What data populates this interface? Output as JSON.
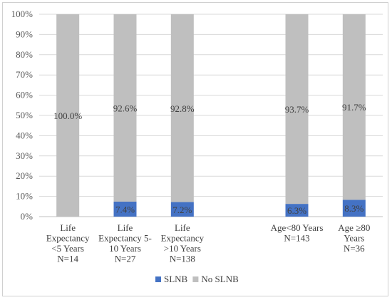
{
  "chart_data": {
    "type": "bar",
    "stacked": true,
    "percent_stacked": true,
    "categories": [
      {
        "lines": [
          "Life",
          "Expectancy",
          "<5 Years",
          "N=14"
        ]
      },
      {
        "lines": [
          "Life",
          "Expectancy 5-",
          "10 Years",
          "N=27"
        ]
      },
      {
        "lines": [
          "Life",
          "Expectancy",
          ">10 Years",
          "N=138"
        ]
      },
      {
        "lines": [],
        "gap": true
      },
      {
        "lines": [
          "Age<80 Years",
          "N=143"
        ]
      },
      {
        "lines": [
          "Age ≥80",
          "Years",
          "N=36"
        ]
      }
    ],
    "series": [
      {
        "name": "SLNB",
        "color": "#4472C4",
        "values": [
          0,
          7.4,
          7.2,
          null,
          6.3,
          8.3
        ],
        "labels": [
          "",
          "7.4%",
          "7.2%",
          "",
          "6.3%",
          "8.3%"
        ]
      },
      {
        "name": "No SLNB",
        "color": "#BFBFBF",
        "values": [
          100,
          92.6,
          92.8,
          null,
          93.7,
          91.7
        ],
        "labels": [
          "100.0%",
          "92.6%",
          "92.8%",
          "",
          "93.7%",
          "91.7%"
        ]
      }
    ],
    "ylim": [
      0,
      100
    ],
    "yticks": [
      "0%",
      "10%",
      "20%",
      "30%",
      "40%",
      "50%",
      "60%",
      "70%",
      "80%",
      "90%",
      "100%"
    ],
    "grid": true,
    "legend_position": "bottom"
  }
}
